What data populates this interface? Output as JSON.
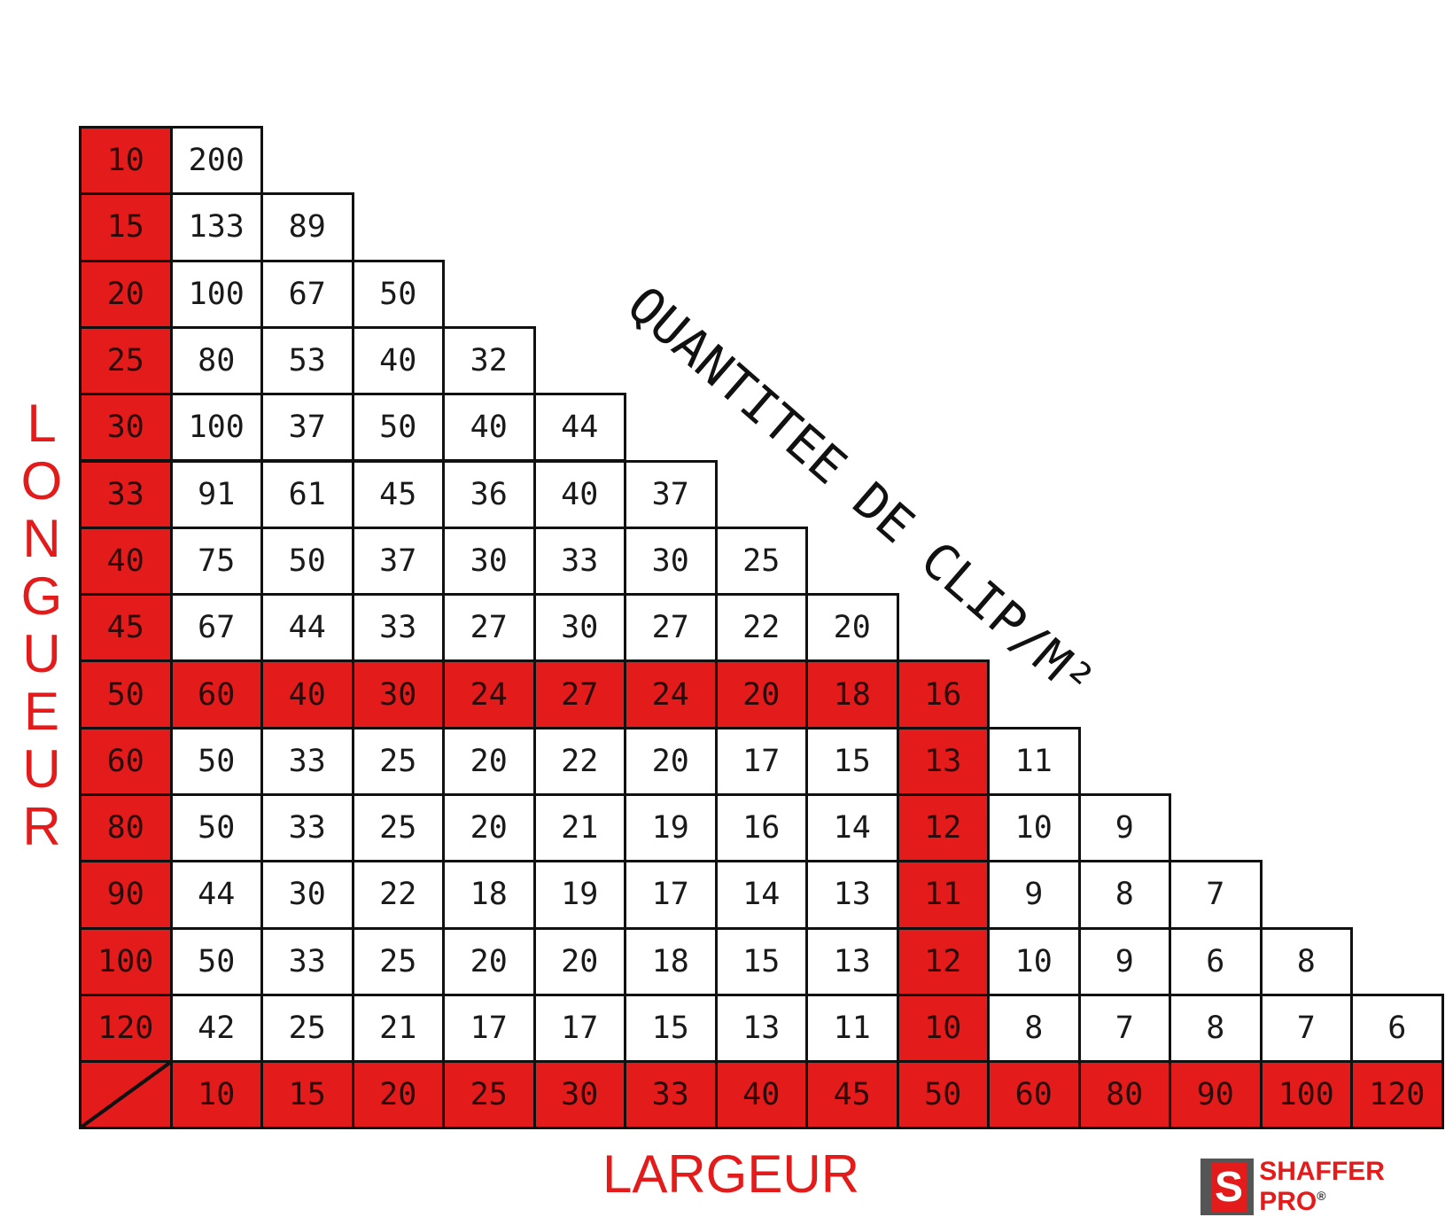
{
  "chart_data": {
    "type": "table",
    "title": "QUANTITEE DE CLIP/M²",
    "ylabel": "LONGUEUR",
    "xlabel": "LARGEUR",
    "rows": [
      10,
      15,
      20,
      25,
      30,
      33,
      40,
      45,
      50,
      60,
      80,
      90,
      100,
      120
    ],
    "columns": [
      10,
      15,
      20,
      25,
      30,
      33,
      40,
      45,
      50,
      60,
      80,
      90,
      100,
      120
    ],
    "values": [
      [
        200
      ],
      [
        133,
        89
      ],
      [
        100,
        67,
        50
      ],
      [
        80,
        53,
        40,
        32
      ],
      [
        100,
        37,
        50,
        40,
        44
      ],
      [
        91,
        61,
        45,
        36,
        40,
        37
      ],
      [
        75,
        50,
        37,
        30,
        33,
        30,
        25
      ],
      [
        67,
        44,
        33,
        27,
        30,
        27,
        22,
        20
      ],
      [
        60,
        40,
        30,
        24,
        27,
        24,
        20,
        18,
        16
      ],
      [
        50,
        33,
        25,
        20,
        22,
        20,
        17,
        15,
        13,
        11
      ],
      [
        50,
        33,
        25,
        20,
        21,
        19,
        16,
        14,
        12,
        10,
        9
      ],
      [
        44,
        30,
        22,
        18,
        19,
        17,
        14,
        13,
        11,
        9,
        8,
        7
      ],
      [
        50,
        33,
        25,
        20,
        20,
        18,
        15,
        13,
        12,
        10,
        9,
        6,
        8
      ],
      [
        42,
        25,
        21,
        17,
        17,
        15,
        13,
        11,
        10,
        8,
        7,
        8,
        7,
        6
      ]
    ],
    "highlight_row": 50,
    "highlight_column": 50
  },
  "colors": {
    "highlight": "#e31b1b",
    "border": "#111111",
    "text": "#1a1a1a"
  },
  "logo": {
    "text": "SHAFFER PRO",
    "mark": "S",
    "registered": "®"
  }
}
